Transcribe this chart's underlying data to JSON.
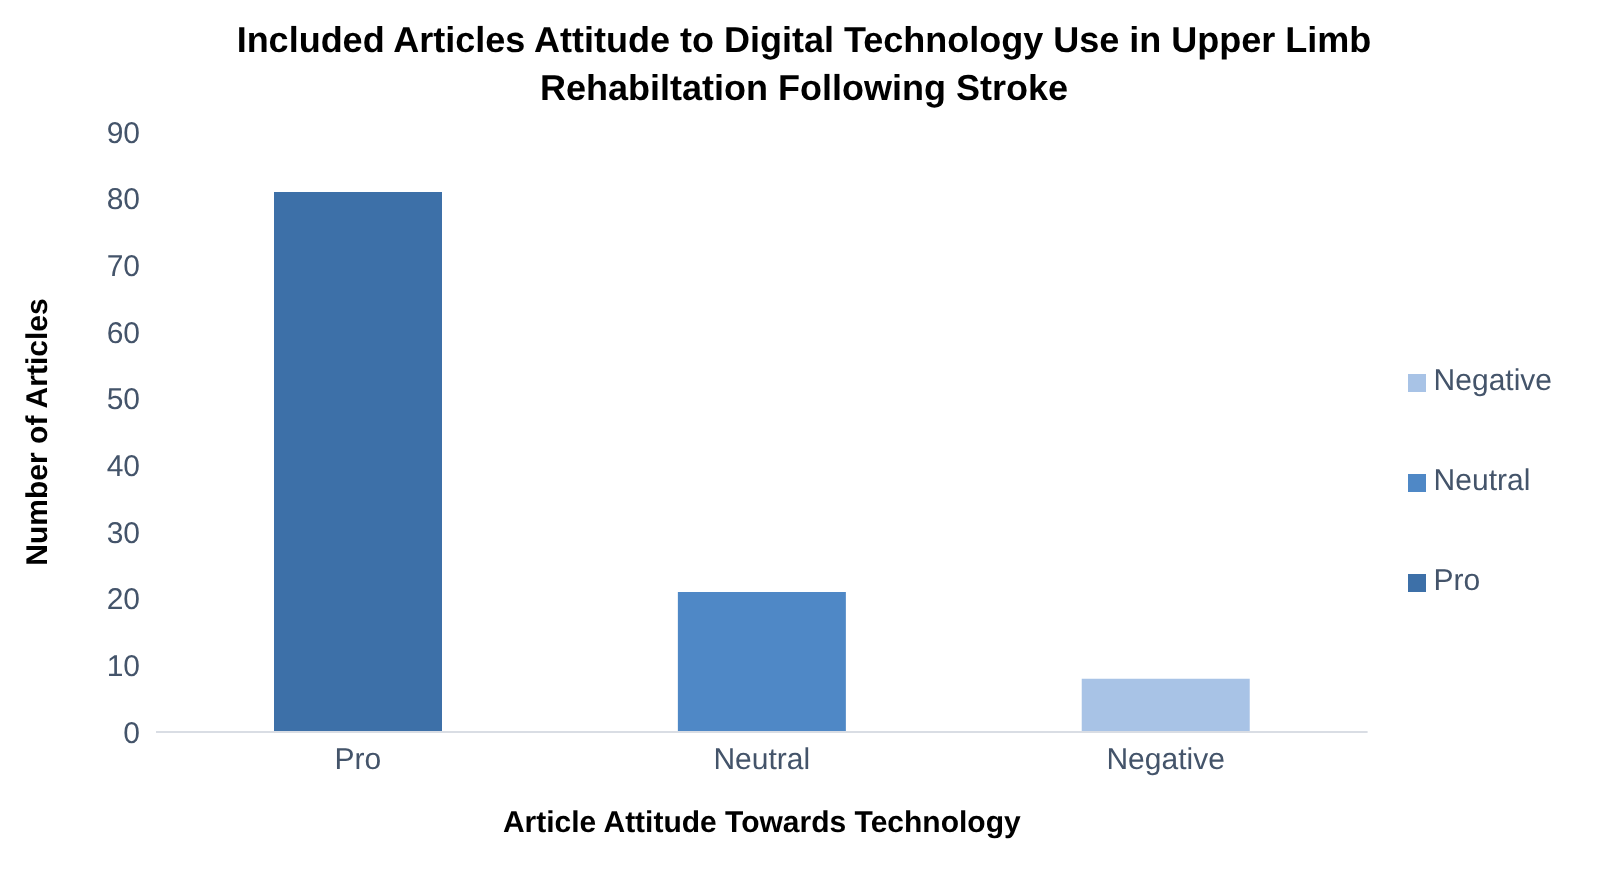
{
  "chart_data": {
    "type": "bar",
    "title": "Included Articles Attitude to Digital Technology Use in Upper Limb Rehabiltation Following Stroke",
    "xlabel": "Article Attitude Towards Technology",
    "ylabel": "Number of Articles",
    "categories": [
      "Pro",
      "Neutral",
      "Negative"
    ],
    "series": [
      {
        "name": "Pro",
        "color": "#3d70a8",
        "values": [
          81,
          null,
          null
        ]
      },
      {
        "name": "Neutral",
        "color": "#4f88c6",
        "values": [
          null,
          21,
          null
        ]
      },
      {
        "name": "Negative",
        "color": "#a8c3e6",
        "values": [
          null,
          null,
          8
        ]
      }
    ],
    "stacked": true,
    "ylim": [
      0,
      90
    ],
    "yticks": [
      0,
      10,
      20,
      30,
      40,
      50,
      60,
      70,
      80,
      90
    ],
    "grid": false,
    "legend": "right"
  }
}
